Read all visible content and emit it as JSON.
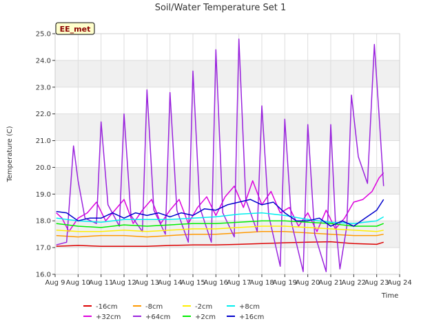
{
  "chart_data": {
    "type": "line",
    "title": "Soil/Water Temperature Set 1",
    "xlabel": "Time",
    "ylabel": "Temperature (C)",
    "badge": "EE_met",
    "xlim": [
      9,
      24
    ],
    "ylim": [
      16.0,
      25.0
    ],
    "xticks": [
      {
        "v": 9,
        "label": "Aug 9"
      },
      {
        "v": 10,
        "label": "Aug 10"
      },
      {
        "v": 11,
        "label": "Aug 11"
      },
      {
        "v": 12,
        "label": "Aug 12"
      },
      {
        "v": 13,
        "label": "Aug 13"
      },
      {
        "v": 14,
        "label": "Aug 14"
      },
      {
        "v": 15,
        "label": "Aug 15"
      },
      {
        "v": 16,
        "label": "Aug 16"
      },
      {
        "v": 17,
        "label": "Aug 17"
      },
      {
        "v": 18,
        "label": "Aug 18"
      },
      {
        "v": 19,
        "label": "Aug 19"
      },
      {
        "v": 20,
        "label": "Aug 20"
      },
      {
        "v": 21,
        "label": "Aug 21"
      },
      {
        "v": 22,
        "label": "Aug 22"
      },
      {
        "v": 23,
        "label": "Aug 23"
      },
      {
        "v": 24,
        "label": "Aug 24"
      }
    ],
    "yticks": [
      {
        "v": 16,
        "label": "16.0"
      },
      {
        "v": 17,
        "label": "17.0"
      },
      {
        "v": 18,
        "label": "18.0"
      },
      {
        "v": 19,
        "label": "19.0"
      },
      {
        "v": 20,
        "label": "20.0"
      },
      {
        "v": 21,
        "label": "21.0"
      },
      {
        "v": 22,
        "label": "22.0"
      },
      {
        "v": 23,
        "label": "23.0"
      },
      {
        "v": 24,
        "label": "24.0"
      },
      {
        "v": 25,
        "label": "25.0"
      }
    ],
    "grid": true,
    "legend_position": "bottom",
    "series": [
      {
        "name": "-16cm",
        "color": "#dd0000",
        "x": [
          9.05,
          10,
          11,
          12,
          13,
          14,
          15,
          16,
          17,
          18,
          19,
          20,
          21,
          22,
          23,
          23.3
        ],
        "y": [
          17.05,
          17.08,
          17.05,
          17.05,
          17.05,
          17.08,
          17.1,
          17.1,
          17.12,
          17.15,
          17.18,
          17.2,
          17.22,
          17.15,
          17.12,
          17.2
        ]
      },
      {
        "name": "+32cm",
        "color": "#dd00dd",
        "x": [
          9.05,
          9.3,
          9.6,
          10,
          10.4,
          10.8,
          11.2,
          11.6,
          12,
          12.4,
          12.8,
          13.2,
          13.6,
          14,
          14.4,
          14.8,
          15.2,
          15.6,
          16,
          16.4,
          16.8,
          17.2,
          17.6,
          18,
          18.4,
          18.8,
          19.2,
          19.6,
          20,
          20.4,
          20.8,
          21.2,
          21.6,
          22,
          22.4,
          22.8,
          23.1,
          23.3
        ],
        "y": [
          18.3,
          18.1,
          17.6,
          18.1,
          18.3,
          18.7,
          18.0,
          18.4,
          18.8,
          17.9,
          18.4,
          18.8,
          17.9,
          18.4,
          18.8,
          17.9,
          18.5,
          18.9,
          18.2,
          18.9,
          19.3,
          18.5,
          19.5,
          18.6,
          19.1,
          18.3,
          18.5,
          17.8,
          18.3,
          17.6,
          18.4,
          17.7,
          18.1,
          18.7,
          18.8,
          19.1,
          19.6,
          19.8
        ]
      },
      {
        "name": "-8cm",
        "color": "#ff9900",
        "x": [
          9.05,
          10,
          11,
          12,
          13,
          14,
          15,
          16,
          17,
          18,
          19,
          20,
          21,
          22,
          23,
          23.3
        ],
        "y": [
          17.45,
          17.4,
          17.45,
          17.45,
          17.4,
          17.45,
          17.5,
          17.5,
          17.55,
          17.6,
          17.6,
          17.55,
          17.5,
          17.45,
          17.45,
          17.5
        ]
      },
      {
        "name": "+64cm",
        "color": "#9922dd",
        "x": [
          9.05,
          9.5,
          9.8,
          10,
          10.3,
          10.8,
          11,
          11.3,
          11.8,
          12,
          12.3,
          12.8,
          13,
          13.3,
          13.8,
          14,
          14.3,
          14.8,
          15,
          15.3,
          15.8,
          16,
          16.3,
          16.8,
          17,
          17.3,
          17.8,
          18,
          18.3,
          18.8,
          19,
          19.3,
          19.8,
          20,
          20.3,
          20.8,
          21,
          21.2,
          21.4,
          21.7,
          21.9,
          22.2,
          22.6,
          22.9,
          23.1,
          23.3
        ],
        "y": [
          17.1,
          17.2,
          20.8,
          19.5,
          18.1,
          17.9,
          21.7,
          18.6,
          17.8,
          22.0,
          18.2,
          17.6,
          22.9,
          18.4,
          17.5,
          22.8,
          18.4,
          17.2,
          23.6,
          18.5,
          17.2,
          24.4,
          18.3,
          17.4,
          24.8,
          18.8,
          17.6,
          22.3,
          18.2,
          16.3,
          21.8,
          17.9,
          16.1,
          21.6,
          17.5,
          16.1,
          21.6,
          18.0,
          16.2,
          17.8,
          22.7,
          20.4,
          19.4,
          24.6,
          22.0,
          19.3
        ]
      },
      {
        "name": "-2cm",
        "color": "#ffee00",
        "x": [
          9.05,
          10,
          11,
          12,
          13,
          14,
          15,
          16,
          17,
          18,
          19,
          20,
          21,
          22,
          23,
          23.3
        ],
        "y": [
          17.65,
          17.6,
          17.6,
          17.65,
          17.6,
          17.65,
          17.7,
          17.7,
          17.75,
          17.8,
          17.8,
          17.75,
          17.7,
          17.65,
          17.6,
          17.65
        ]
      },
      {
        "name": "+2cm",
        "color": "#00ee00",
        "x": [
          9.05,
          10,
          11,
          12,
          13,
          14,
          15,
          16,
          17,
          18,
          19,
          20,
          21,
          22,
          23,
          23.3
        ],
        "y": [
          17.9,
          17.8,
          17.75,
          17.85,
          17.8,
          17.85,
          17.9,
          17.9,
          17.95,
          18.0,
          18.0,
          17.95,
          17.9,
          17.8,
          17.8,
          17.9
        ]
      },
      {
        "name": "+8cm",
        "color": "#00eeee",
        "x": [
          9.05,
          10,
          11,
          12,
          13,
          14,
          15,
          16,
          17,
          18,
          19,
          20,
          21,
          22,
          23,
          23.3
        ],
        "y": [
          18.1,
          18.0,
          17.95,
          18.05,
          18.05,
          18.05,
          18.1,
          18.15,
          18.25,
          18.3,
          18.2,
          18.05,
          17.95,
          17.9,
          18.0,
          18.15
        ]
      },
      {
        "name": "+16cm",
        "color": "#0000cc",
        "x": [
          9.05,
          9.5,
          10,
          10.5,
          11,
          11.5,
          12,
          12.5,
          13,
          13.5,
          14,
          14.5,
          15,
          15.5,
          16,
          16.5,
          17,
          17.5,
          18,
          18.5,
          19,
          19.5,
          20,
          20.5,
          21,
          21.5,
          22,
          22.5,
          23,
          23.3
        ],
        "y": [
          18.35,
          18.3,
          18.0,
          18.1,
          18.1,
          18.3,
          18.1,
          18.3,
          18.2,
          18.3,
          18.15,
          18.3,
          18.2,
          18.45,
          18.4,
          18.6,
          18.7,
          18.8,
          18.6,
          18.7,
          18.3,
          18.0,
          18.0,
          18.1,
          17.8,
          18.0,
          17.8,
          18.1,
          18.4,
          18.8
        ]
      }
    ]
  }
}
